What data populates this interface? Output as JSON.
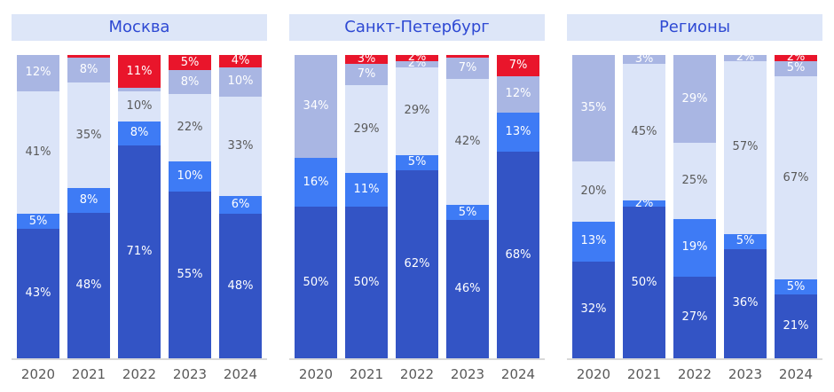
{
  "palette": {
    "dark": "#3354c5",
    "bright": "#3e7bf5",
    "light": "#dbe4f8",
    "lavender": "#a9b6e3",
    "red": "#e9152b",
    "title_bg": "#dde6f8",
    "title_text": "#2e49d3",
    "gray_text": "#595959",
    "axis": "#d9d9d9",
    "label_white": "#ffffff"
  },
  "chart_data": [
    {
      "type": "bar",
      "stacked": true,
      "title": "Москва",
      "unit": "%",
      "ylim": [
        0,
        100
      ],
      "grid": false,
      "legend": "none",
      "categories": [
        "2020",
        "2021",
        "2022",
        "2023",
        "2024"
      ],
      "stack_order": "bottom-to-top",
      "series": [
        {
          "key": "dark",
          "name": "dark-blue",
          "values": [
            43,
            48,
            71,
            55,
            48
          ],
          "labels": [
            "43%",
            "48%",
            "71%",
            "55%",
            "48%"
          ]
        },
        {
          "key": "bright",
          "name": "bright-blue",
          "values": [
            5,
            8,
            8,
            10,
            6
          ],
          "labels": [
            "5%",
            "8%",
            "8%",
            "10%",
            "6%"
          ]
        },
        {
          "key": "light",
          "name": "light-blue",
          "values": [
            41,
            35,
            10,
            22,
            33
          ],
          "labels": [
            "41%",
            "35%",
            "10%",
            "22%",
            "33%"
          ]
        },
        {
          "key": "lavender",
          "name": "lavender",
          "values": [
            12,
            8,
            1,
            8,
            10
          ],
          "labels": [
            "12%",
            "8%",
            "",
            "8%",
            "10%"
          ]
        },
        {
          "key": "red",
          "name": "red",
          "values": [
            0,
            1,
            11,
            5,
            4
          ],
          "labels": [
            "",
            "",
            "11%",
            "5%",
            "4%"
          ]
        }
      ]
    },
    {
      "type": "bar",
      "stacked": true,
      "title": "Санкт-Петербург",
      "unit": "%",
      "ylim": [
        0,
        100
      ],
      "grid": false,
      "legend": "none",
      "categories": [
        "2020",
        "2021",
        "2022",
        "2023",
        "2024"
      ],
      "stack_order": "bottom-to-top",
      "series": [
        {
          "key": "dark",
          "name": "dark-blue",
          "values": [
            50,
            50,
            62,
            46,
            68
          ],
          "labels": [
            "50%",
            "50%",
            "62%",
            "46%",
            "68%"
          ]
        },
        {
          "key": "bright",
          "name": "bright-blue",
          "values": [
            16,
            11,
            5,
            5,
            13
          ],
          "labels": [
            "16%",
            "11%",
            "5%",
            "5%",
            "13%"
          ]
        },
        {
          "key": "light",
          "name": "light-blue",
          "values": [
            0,
            29,
            29,
            42,
            0
          ],
          "labels": [
            "",
            "29%",
            "29%",
            "42%",
            ""
          ]
        },
        {
          "key": "lavender",
          "name": "lavender",
          "values": [
            34,
            7,
            2,
            7,
            12
          ],
          "labels": [
            "34%",
            "7%",
            "2%",
            "7%",
            "12%"
          ]
        },
        {
          "key": "red",
          "name": "red",
          "values": [
            0,
            3,
            2,
            1,
            7
          ],
          "labels": [
            "",
            "3%",
            "2%",
            "",
            "7%"
          ]
        }
      ]
    },
    {
      "type": "bar",
      "stacked": true,
      "title": "Регионы",
      "unit": "%",
      "ylim": [
        0,
        100
      ],
      "grid": false,
      "legend": "none",
      "categories": [
        "2020",
        "2021",
        "2022",
        "2023",
        "2024"
      ],
      "stack_order": "bottom-to-top",
      "series": [
        {
          "key": "dark",
          "name": "dark-blue",
          "values": [
            32,
            50,
            27,
            36,
            21
          ],
          "labels": [
            "32%",
            "50%",
            "27%",
            "36%",
            "21%"
          ]
        },
        {
          "key": "bright",
          "name": "bright-blue",
          "values": [
            13,
            2,
            19,
            5,
            5
          ],
          "labels": [
            "13%",
            "2%",
            "19%",
            "5%",
            "5%"
          ]
        },
        {
          "key": "light",
          "name": "light-blue",
          "values": [
            20,
            45,
            25,
            57,
            67
          ],
          "labels": [
            "20%",
            "45%",
            "25%",
            "57%",
            "67%"
          ]
        },
        {
          "key": "lavender",
          "name": "lavender",
          "values": [
            35,
            3,
            29,
            2,
            5
          ],
          "labels": [
            "35%",
            "3%",
            "29%",
            "2%",
            "5%"
          ]
        },
        {
          "key": "red",
          "name": "red",
          "values": [
            0,
            0,
            0,
            0,
            2
          ],
          "labels": [
            "",
            "",
            "",
            "",
            "2%"
          ]
        }
      ]
    }
  ]
}
